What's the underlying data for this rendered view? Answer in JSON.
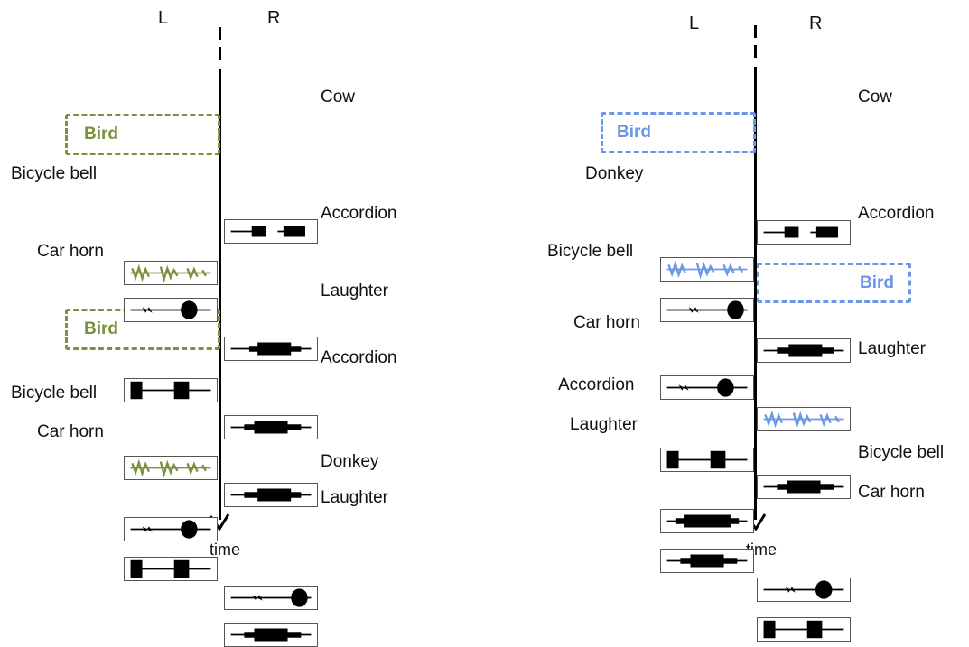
{
  "panel_a": {
    "left_header": "L",
    "right_header": "R",
    "time_label": "time",
    "accent": "#7a9140",
    "labels": {
      "cow": "Cow",
      "bird_1": "Bird",
      "bicycle_bell_1": "Bicycle bell",
      "accordion_1": "Accordion",
      "car_horn_1": "Car horn",
      "laughter_1": "Laughter",
      "bird_2": "Bird",
      "accordion_2": "Accordion",
      "bicycle_bell_2": "Bicycle bell",
      "car_horn_2": "Car horn",
      "donkey": "Donkey",
      "laughter_2": "Laughter"
    }
  },
  "panel_b": {
    "left_header": "L",
    "right_header": "R",
    "time_label": "time",
    "accent": "#6b97e6",
    "labels": {
      "cow": "Cow",
      "bird_1": "Bird",
      "donkey": "Donkey",
      "accordion_1": "Accordion",
      "bicycle_bell_1": "Bicycle bell",
      "bird_2": "Bird",
      "car_horn_1": "Car horn",
      "laughter_1": "Laughter",
      "accordion_2": "Accordion",
      "laughter_2": "Laughter",
      "bicycle_bell_2": "Bicycle bell",
      "car_horn_2": "Car horn"
    }
  }
}
